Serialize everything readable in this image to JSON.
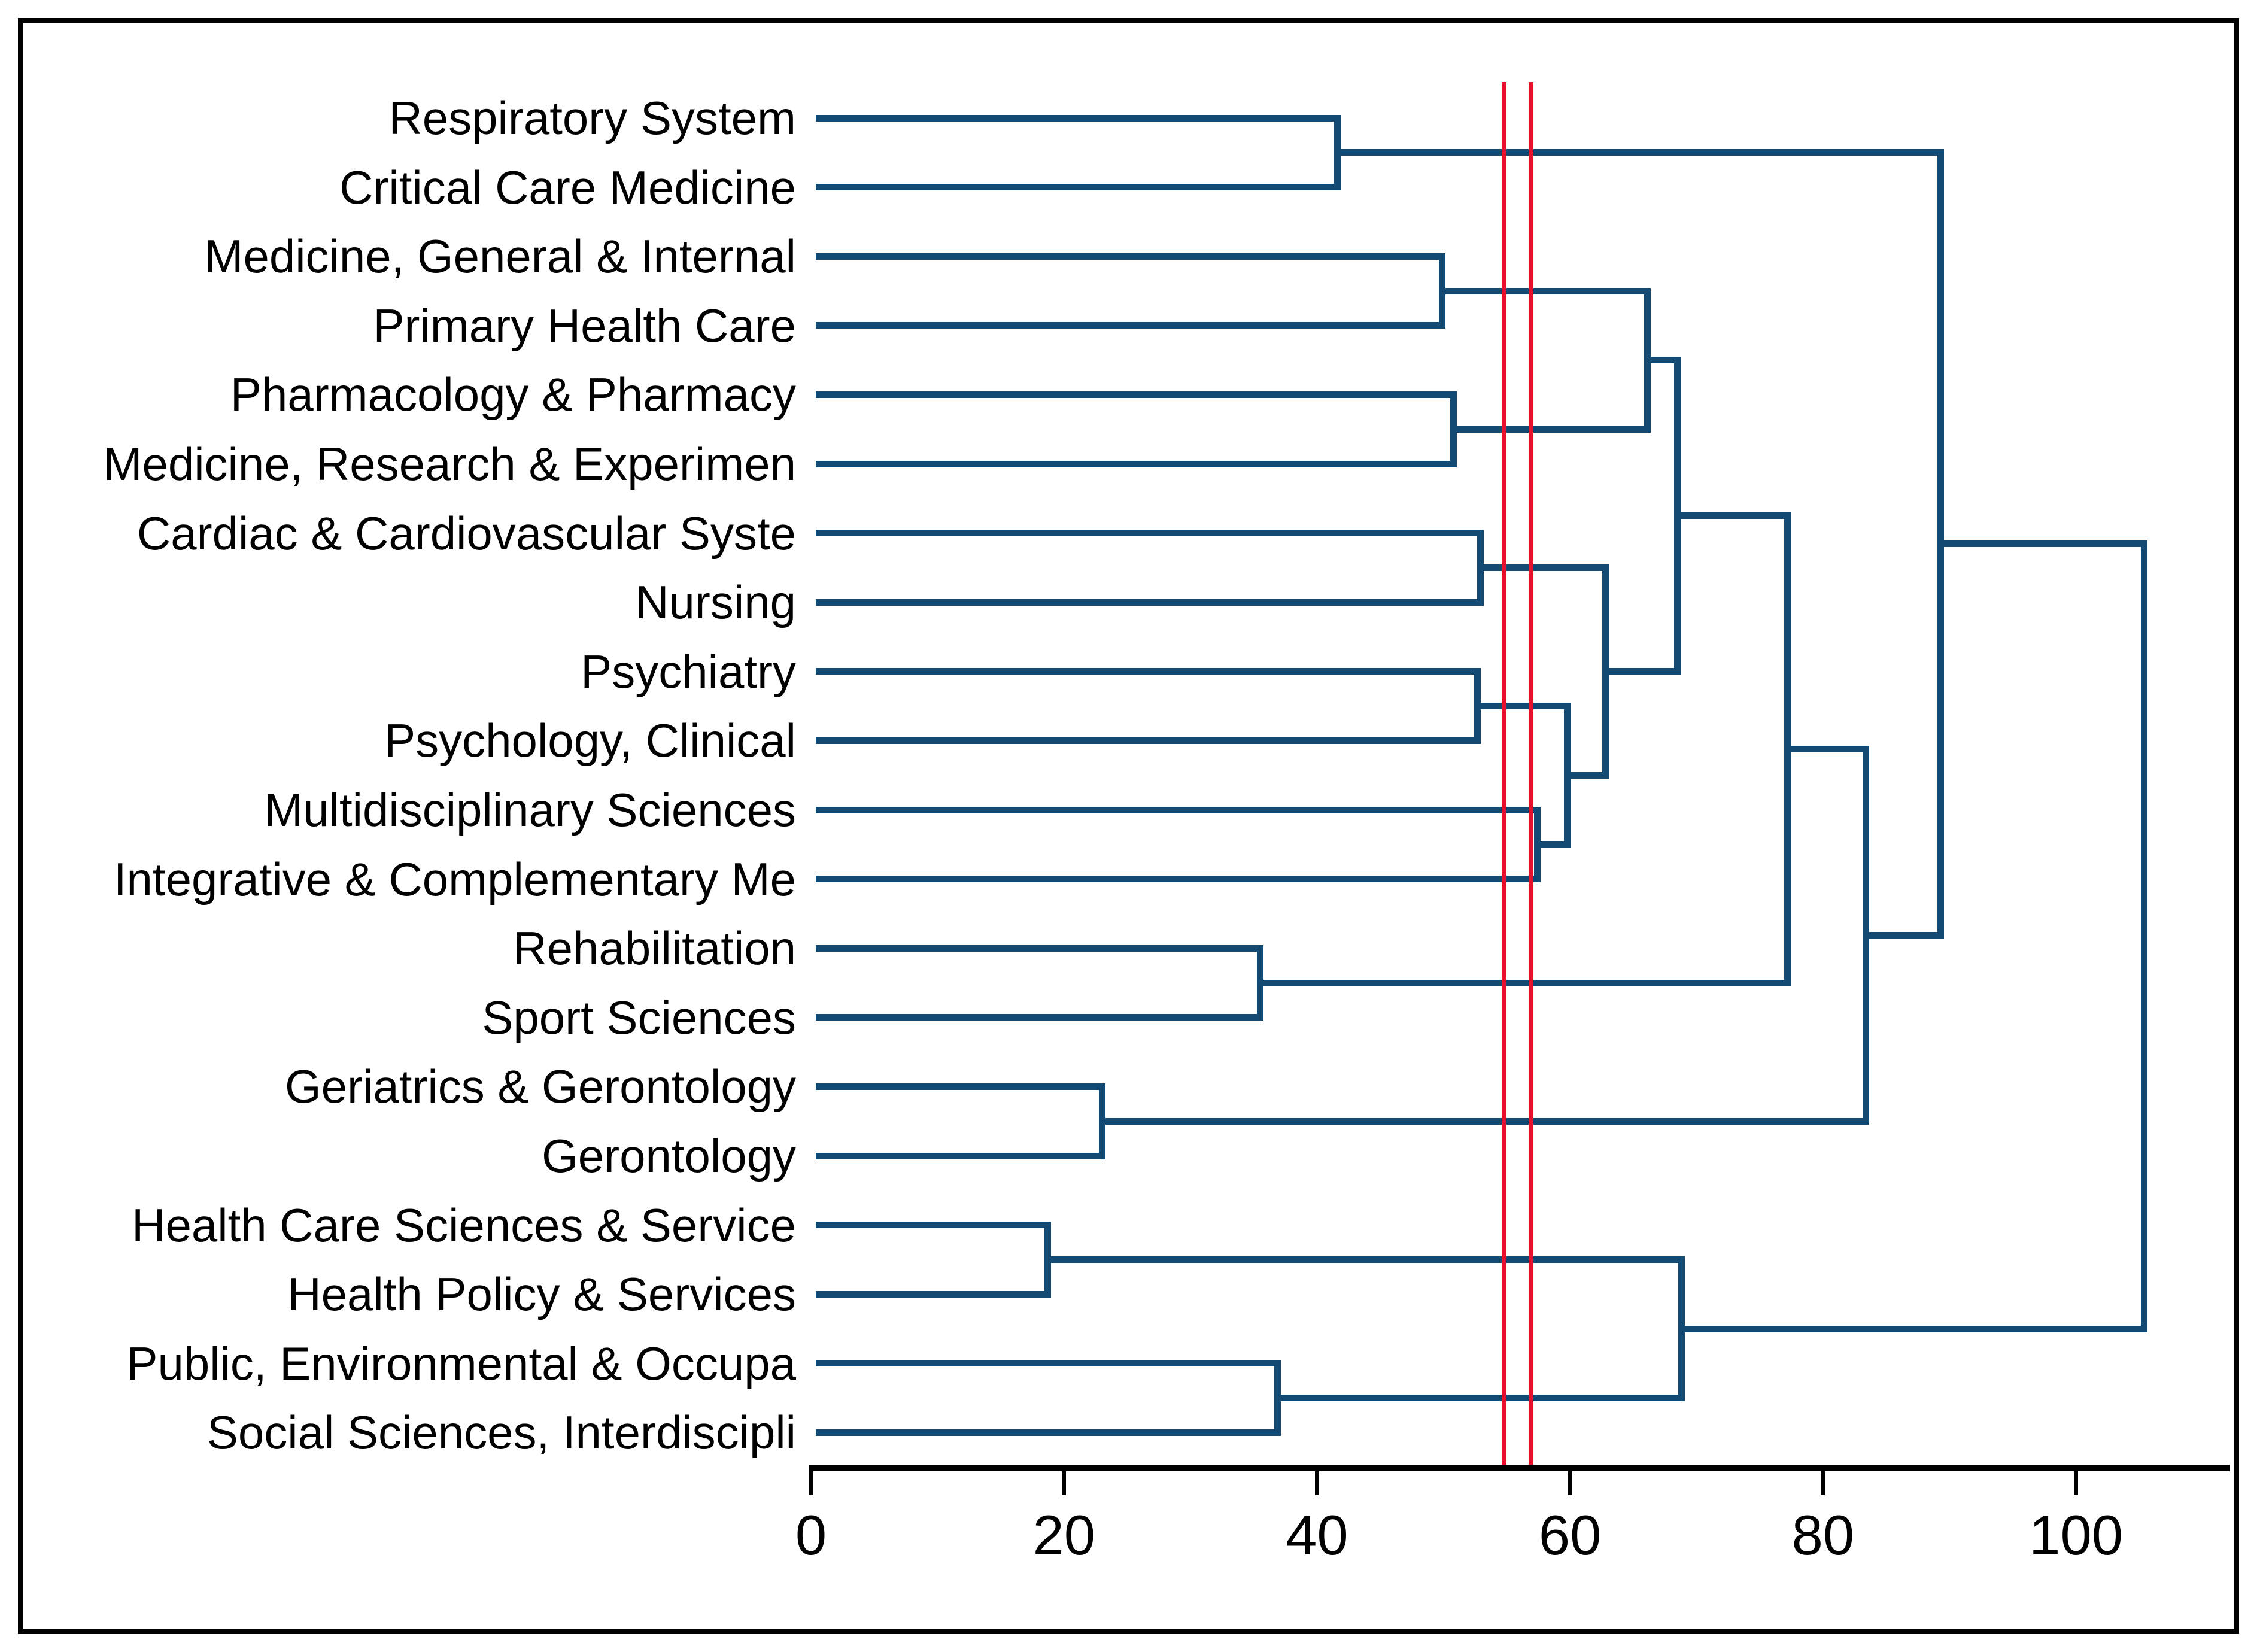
{
  "figure": {
    "background": "#ffffff",
    "frame_color": "#000000"
  },
  "chart_data": {
    "type": "dendrogram",
    "orientation": "horizontal, leaves on left, root on right",
    "title": "",
    "xlabel": "",
    "ylabel": "",
    "x_axis": {
      "tick_values": [
        0,
        20,
        40,
        60,
        80,
        100
      ],
      "tick_labels": [
        "0",
        "20",
        "40",
        "60",
        "80",
        "100"
      ],
      "range": [
        0,
        110
      ],
      "grid": false
    },
    "leaves": [
      "Respiratory System",
      "Critical Care Medicine",
      "Medicine, General & Internal",
      "Primary Health Care",
      "Pharmacology & Pharmacy",
      "Medicine, Research & Experimen",
      "Cardiac & Cardiovascular Syste",
      "Nursing",
      "Psychiatry",
      "Psychology, Clinical",
      "Multidisciplinary Sciences",
      "Integrative & Complementary Me",
      "Rehabilitation",
      "Sport Sciences",
      "Geriatrics & Gerontology",
      "Gerontology",
      "Health Care Sciences & Service",
      "Health Policy & Services",
      "Public, Environmental & Occupa",
      "Social Sciences, Interdiscipli"
    ],
    "merges": [
      {
        "id": "M1",
        "a": "L1",
        "b": "L2",
        "h": 41.6
      },
      {
        "id": "M2",
        "a": "L3",
        "b": "L4",
        "h": 49.9
      },
      {
        "id": "M3",
        "a": "L5",
        "b": "L6",
        "h": 50.8
      },
      {
        "id": "M4",
        "a": "M2",
        "b": "M3",
        "h": 66.1
      },
      {
        "id": "M5",
        "a": "L7",
        "b": "L8",
        "h": 52.9
      },
      {
        "id": "M6",
        "a": "L9",
        "b": "L10",
        "h": 52.7
      },
      {
        "id": "M7",
        "a": "L11",
        "b": "L12",
        "h": 57.4
      },
      {
        "id": "M8",
        "a": "M6",
        "b": "M7",
        "h": 59.8
      },
      {
        "id": "M9",
        "a": "M5",
        "b": "M8",
        "h": 62.8
      },
      {
        "id": "M10",
        "a": "M4",
        "b": "M9",
        "h": 68.5
      },
      {
        "id": "M11",
        "a": "L13",
        "b": "L14",
        "h": 35.5
      },
      {
        "id": "M12",
        "a": "M10",
        "b": "M11",
        "h": 77.2
      },
      {
        "id": "M13",
        "a": "L15",
        "b": "L16",
        "h": 23.0
      },
      {
        "id": "M14",
        "a": "M12",
        "b": "M13",
        "h": 83.4
      },
      {
        "id": "M15",
        "a": "M1",
        "b": "M14",
        "h": 89.3
      },
      {
        "id": "M16",
        "a": "L17",
        "b": "L18",
        "h": 18.7
      },
      {
        "id": "M17",
        "a": "L19",
        "b": "L20",
        "h": 36.9
      },
      {
        "id": "M18",
        "a": "M16",
        "b": "M17",
        "h": 68.8
      },
      {
        "id": "M19",
        "a": "M15",
        "b": "M18",
        "h": 105.4
      }
    ],
    "reference_lines": {
      "values": [
        54.8,
        56.9
      ],
      "color": "#e8112d"
    },
    "colors": {
      "link": "#124a73",
      "axis": "#000000",
      "text": "#000000"
    },
    "legend": null
  }
}
